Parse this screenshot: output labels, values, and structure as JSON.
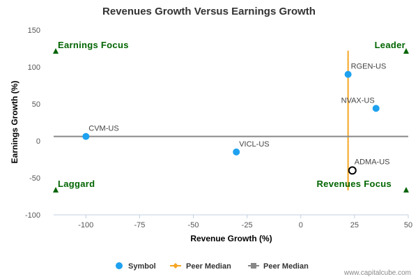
{
  "chart_data": {
    "type": "scatter",
    "title": "Revenues Growth Versus Earnings Growth",
    "xlabel": "Revenue Growth (%)",
    "ylabel": "Earnings Growth (%)",
    "xlim": [
      -115,
      50
    ],
    "ylim": [
      -100,
      150
    ],
    "xticks": [
      -100,
      -75,
      -50,
      -25,
      0,
      25,
      50
    ],
    "yticks": [
      -100,
      -50,
      0,
      50,
      100,
      150
    ],
    "grid": false,
    "legend_position": "bottom",
    "series": [
      {
        "name": "Symbol",
        "color": "#1ea1ef",
        "points": [
          {
            "label": "RGEN-US",
            "x": 22,
            "y": 90
          },
          {
            "label": "NVAX-US",
            "x": 35,
            "y": 44
          },
          {
            "label": "CVM-US",
            "x": -100,
            "y": 6
          },
          {
            "label": "VICL-US",
            "x": -30,
            "y": -15
          }
        ]
      },
      {
        "name": "Peer Median",
        "color": "#f5a623",
        "orientation": "vertical",
        "x": 22,
        "y_range": [
          -67,
          122
        ]
      },
      {
        "name": "Peer Median",
        "color": "#888888",
        "orientation": "horizontal",
        "y": 6,
        "x_range": [
          -115,
          50
        ]
      }
    ],
    "highlight": {
      "label": "ADMA-US",
      "x": 24,
      "y": -40
    },
    "quadrants": {
      "top_left": "Earnings Focus",
      "top_right": "Leader",
      "bottom_left": "Laggard",
      "bottom_right": "Revenues Focus"
    },
    "credit": "www.capitalcube.com"
  }
}
